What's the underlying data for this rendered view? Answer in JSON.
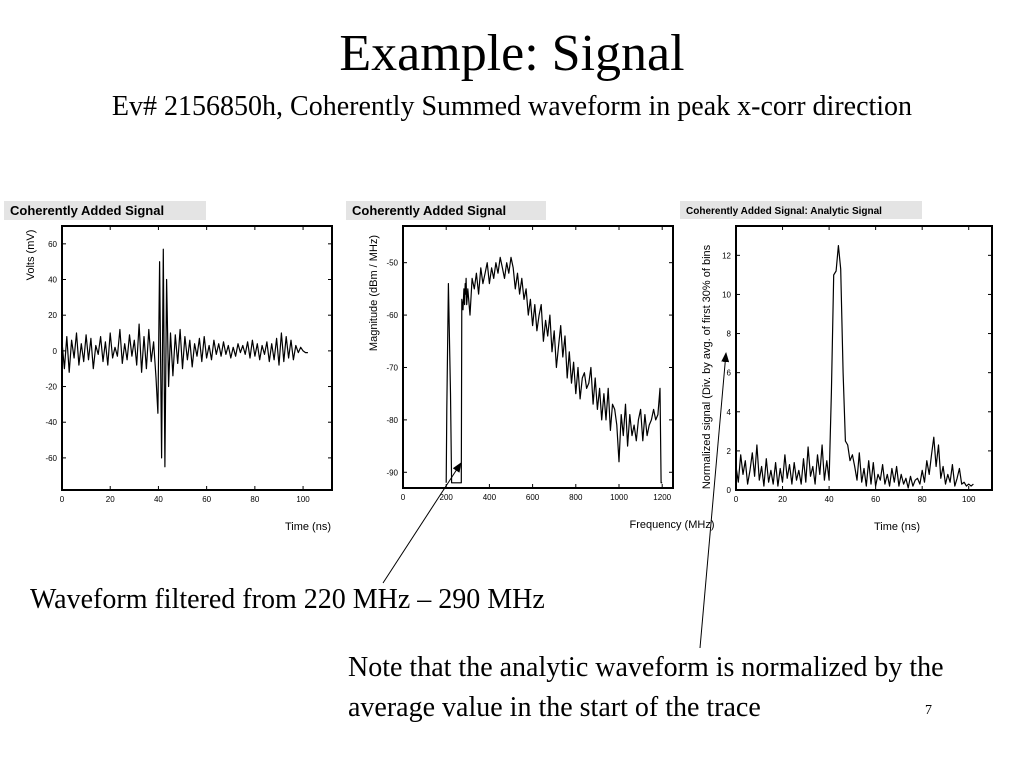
{
  "slide": {
    "title": "Example: Signal",
    "subtitle": "Ev# 2156850h, Coherently Summed waveform in peak x-corr direction",
    "caption_filter": "Waveform filtered from 220 MHz – 290 MHz",
    "caption_note": "Note that the analytic waveform is normalized by the average value in the start of the trace",
    "page_number": "7"
  },
  "chart_data": [
    {
      "type": "line",
      "title": "Coherently Added Signal",
      "xlabel": "Time (ns)",
      "ylabel": "Volts (mV)",
      "xlim": [
        0,
        112
      ],
      "ylim": [
        -78,
        70
      ],
      "xticks": [
        0,
        20,
        40,
        60,
        80,
        100
      ],
      "yticks": [
        -60,
        -40,
        -20,
        0,
        20,
        40,
        60
      ],
      "grid": false,
      "series": [
        {
          "x": [
            0,
            1,
            2,
            3,
            4,
            5,
            6,
            7,
            8,
            9,
            10,
            11,
            12,
            13,
            14,
            15,
            16,
            17,
            18,
            19,
            20,
            21,
            22,
            23,
            24,
            25,
            26,
            27,
            28,
            29,
            30,
            31,
            32,
            33,
            34,
            35,
            36,
            37,
            38,
            39,
            39.8,
            40.5,
            41.3,
            42,
            42.7,
            43.4,
            44.2,
            45,
            46,
            47,
            48,
            49,
            50,
            51,
            52,
            53,
            54,
            55,
            56,
            57,
            58,
            59,
            60,
            61,
            62,
            63,
            64,
            65,
            66,
            67,
            68,
            69,
            70,
            71,
            72,
            73,
            74,
            75,
            76,
            77,
            78,
            79,
            80,
            81,
            82,
            83,
            84,
            85,
            86,
            87,
            88,
            89,
            90,
            91,
            92,
            93,
            94,
            95,
            96,
            97,
            98,
            99,
            100,
            101,
            102
          ],
          "y": [
            5,
            -10,
            8,
            -12,
            6,
            -4,
            10,
            -8,
            4,
            -6,
            9,
            -5,
            7,
            -10,
            3,
            -2,
            8,
            -6,
            5,
            -8,
            10,
            -4,
            2,
            -3,
            12,
            -7,
            4,
            -5,
            9,
            -3,
            6,
            -8,
            15,
            -12,
            8,
            -10,
            12,
            -6,
            5,
            -15,
            -35,
            50,
            -60,
            57,
            -65,
            40,
            -20,
            10,
            -14,
            9,
            -7,
            12,
            -10,
            8,
            -5,
            6,
            -9,
            4,
            -3,
            7,
            -6,
            8,
            -4,
            3,
            -5,
            6,
            -2,
            4,
            -3,
            5,
            -2,
            3,
            -4,
            2,
            -3,
            4,
            -1,
            3,
            -2,
            5,
            -4,
            6,
            -3,
            4,
            -5,
            3,
            -2,
            5,
            -6,
            4,
            -5,
            7,
            -8,
            10,
            -6,
            8,
            -4,
            6,
            -5,
            3,
            -1,
            2,
            0,
            -1,
            -1
          ]
        }
      ]
    },
    {
      "type": "line",
      "title": "Coherently Added Signal",
      "xlabel": "Frequency (MHz)",
      "ylabel": "Magnitude (dBm / MHz)",
      "xlim": [
        0,
        1250
      ],
      "ylim": [
        -93,
        -43
      ],
      "xticks": [
        0,
        200,
        400,
        600,
        800,
        1000,
        1200
      ],
      "yticks": [
        -90,
        -80,
        -70,
        -60,
        -50
      ],
      "grid": false,
      "series": [
        {
          "x": [
            200,
            203,
            210,
            220,
            225,
            230,
            240,
            270,
            272,
            278,
            282,
            285,
            288,
            290,
            292,
            295,
            300,
            310,
            320,
            330,
            340,
            350,
            360,
            370,
            380,
            390,
            400,
            410,
            420,
            430,
            440,
            450,
            460,
            470,
            480,
            490,
            500,
            510,
            520,
            530,
            540,
            550,
            560,
            570,
            580,
            590,
            600,
            610,
            620,
            630,
            640,
            650,
            660,
            670,
            680,
            690,
            700,
            710,
            720,
            730,
            740,
            750,
            760,
            770,
            780,
            790,
            800,
            810,
            820,
            830,
            840,
            850,
            860,
            870,
            880,
            890,
            900,
            910,
            920,
            930,
            940,
            950,
            960,
            970,
            980,
            990,
            1000,
            1010,
            1020,
            1030,
            1040,
            1050,
            1060,
            1070,
            1080,
            1090,
            1100,
            1110,
            1120,
            1130,
            1140,
            1150,
            1160,
            1170,
            1180,
            1190,
            1195,
            1200
          ],
          "y": [
            -92,
            -78,
            -54,
            -75,
            -92,
            -92,
            -92,
            -92,
            -57,
            -59,
            -55,
            -58,
            -54,
            -56,
            -53,
            -58,
            -55,
            -60,
            -53,
            -55,
            -52,
            -56,
            -51,
            -54,
            -52,
            -50,
            -54,
            -51,
            -53,
            -50,
            -52,
            -49,
            -51,
            -53,
            -50,
            -52,
            -49,
            -51,
            -55,
            -52,
            -56,
            -53,
            -57,
            -55,
            -60,
            -57,
            -62,
            -58,
            -63,
            -60,
            -58,
            -65,
            -61,
            -64,
            -60,
            -67,
            -63,
            -70,
            -66,
            -62,
            -68,
            -64,
            -72,
            -67,
            -73,
            -69,
            -75,
            -70,
            -76,
            -72,
            -71,
            -74,
            -73,
            -70,
            -77,
            -72,
            -78,
            -74,
            -80,
            -75,
            -80,
            -74,
            -82,
            -77,
            -78,
            -81,
            -88,
            -79,
            -83,
            -77,
            -85,
            -79,
            -83,
            -81,
            -84,
            -80,
            -78,
            -84,
            -79,
            -83,
            -81,
            -80,
            -78,
            -80,
            -79,
            -74,
            -92,
            -92
          ]
        }
      ]
    },
    {
      "type": "line",
      "title": "Coherently Added Signal: Analytic Signal",
      "xlabel": "Time (ns)",
      "ylabel": "Normalized signal (Div. by avg. of first 30% of bins",
      "xlim": [
        0,
        110
      ],
      "ylim": [
        0,
        13.5
      ],
      "xticks": [
        0,
        20,
        40,
        60,
        80,
        100
      ],
      "yticks": [
        0,
        2,
        4,
        6,
        8,
        10,
        12
      ],
      "grid": false,
      "series": [
        {
          "x": [
            0,
            1,
            2,
            3,
            4,
            5,
            6,
            7,
            8,
            9,
            10,
            11,
            12,
            13,
            14,
            15,
            16,
            17,
            18,
            19,
            20,
            21,
            22,
            23,
            24,
            25,
            26,
            27,
            28,
            29,
            30,
            31,
            32,
            33,
            34,
            35,
            36,
            37,
            38,
            39,
            40,
            41,
            42,
            43,
            44,
            45,
            46,
            47,
            48,
            49,
            50,
            51,
            52,
            53,
            54,
            55,
            56,
            57,
            58,
            59,
            60,
            61,
            62,
            63,
            64,
            65,
            66,
            67,
            68,
            69,
            70,
            71,
            72,
            73,
            74,
            75,
            76,
            77,
            78,
            79,
            80,
            81,
            82,
            83,
            84,
            85,
            86,
            87,
            88,
            89,
            90,
            91,
            92,
            93,
            94,
            95,
            96,
            97,
            98,
            99,
            100,
            101,
            102
          ],
          "y": [
            1.2,
            0.4,
            1.8,
            0.8,
            1.5,
            0.3,
            1.0,
            1.9,
            0.7,
            2.3,
            0.5,
            1.2,
            0.2,
            1.6,
            0.4,
            1.0,
            0.3,
            1.4,
            0.2,
            1.1,
            0.4,
            1.8,
            0.6,
            1.3,
            0.3,
            1.4,
            0.5,
            1.0,
            0.3,
            1.6,
            0.4,
            2.2,
            0.7,
            1.2,
            0.3,
            1.8,
            0.8,
            2.3,
            0.5,
            1.5,
            0.5,
            5.0,
            11.0,
            11.2,
            12.5,
            11.3,
            6.0,
            2.5,
            2.3,
            1.5,
            1.8,
            1.2,
            0.5,
            1.9,
            0.4,
            1.1,
            0.2,
            1.5,
            0.3,
            1.4,
            0.2,
            0.8,
            0.5,
            1.3,
            0.3,
            0.8,
            0.2,
            1.1,
            0.4,
            1.2,
            0.2,
            0.8,
            0.3,
            0.6,
            0.1,
            0.7,
            0.2,
            0.5,
            0.6,
            0.3,
            1.0,
            0.4,
            1.5,
            0.8,
            1.8,
            2.7,
            1.2,
            2.3,
            0.6,
            1.2,
            0.3,
            0.8,
            0.4,
            1.3,
            0.2,
            0.6,
            1.1,
            0.3,
            0.4,
            0.2,
            0.3,
            0.2,
            0.3
          ]
        }
      ]
    }
  ]
}
